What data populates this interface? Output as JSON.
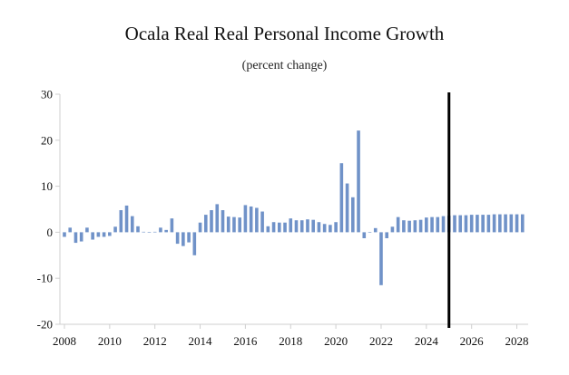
{
  "chart_data": {
    "type": "bar",
    "title": "Ocala Real Real Personal Income Growth",
    "subtitle": "(percent change)",
    "xlabel": "",
    "ylabel": "",
    "ylim": [
      -20,
      30
    ],
    "y_ticks": [
      30,
      20,
      10,
      0,
      -10,
      -20
    ],
    "y_tick_labels": [
      "30",
      "20",
      "10",
      "0",
      "-10",
      "-20"
    ],
    "x_ticks": [
      2008,
      2010,
      2012,
      2014,
      2016,
      2018,
      2020,
      2022,
      2024,
      2026,
      2028
    ],
    "x_tick_labels": [
      "2008",
      "2010",
      "2012",
      "2014",
      "2016",
      "2018",
      "2020",
      "2022",
      "2024",
      "2026",
      "2028"
    ],
    "xlim": [
      2007.8,
      2028.5
    ],
    "grid": false,
    "bar_color": "#7092c8",
    "forecast_marker": {
      "x": 2025.0,
      "color": "#000000"
    },
    "x": [
      2008.0,
      2008.25,
      2008.5,
      2008.75,
      2009.0,
      2009.25,
      2009.5,
      2009.75,
      2010.0,
      2010.25,
      2010.5,
      2010.75,
      2011.0,
      2011.25,
      2011.5,
      2011.75,
      2012.0,
      2012.25,
      2012.5,
      2012.75,
      2013.0,
      2013.25,
      2013.5,
      2013.75,
      2014.0,
      2014.25,
      2014.5,
      2014.75,
      2015.0,
      2015.25,
      2015.5,
      2015.75,
      2016.0,
      2016.25,
      2016.5,
      2016.75,
      2017.0,
      2017.25,
      2017.5,
      2017.75,
      2018.0,
      2018.25,
      2018.5,
      2018.75,
      2019.0,
      2019.25,
      2019.5,
      2019.75,
      2020.0,
      2020.25,
      2020.5,
      2020.75,
      2021.0,
      2021.25,
      2021.5,
      2021.75,
      2022.0,
      2022.25,
      2022.5,
      2022.75,
      2023.0,
      2023.25,
      2023.5,
      2023.75,
      2024.0,
      2024.25,
      2024.5,
      2024.75,
      2025.0,
      2025.25,
      2025.5,
      2025.75,
      2026.0,
      2026.25,
      2026.5,
      2026.75,
      2027.0,
      2027.25,
      2027.5,
      2027.75,
      2028.0,
      2028.25
    ],
    "values": [
      -1.0,
      1.0,
      -2.3,
      -2.0,
      1.0,
      -1.6,
      -1.0,
      -1.0,
      -0.8,
      1.2,
      4.8,
      5.8,
      3.5,
      1.3,
      0.1,
      -0.1,
      0.1,
      1.0,
      0.5,
      3.0,
      -2.5,
      -3.0,
      -2.2,
      -5.0,
      2.1,
      3.8,
      4.8,
      6.1,
      4.8,
      3.4,
      3.3,
      3.2,
      5.9,
      5.6,
      5.3,
      4.5,
      1.3,
      2.2,
      2.1,
      2.1,
      3.0,
      2.6,
      2.6,
      2.8,
      2.7,
      2.2,
      1.8,
      1.6,
      2.2,
      15.0,
      10.6,
      7.6,
      22.1,
      -1.3,
      0.0,
      0.9,
      -11.5,
      -1.3,
      1.2,
      3.3,
      2.6,
      2.5,
      2.6,
      2.7,
      3.2,
      3.3,
      3.3,
      3.5,
      3.6,
      3.7,
      3.7,
      3.7,
      3.8,
      3.8,
      3.8,
      3.8,
      3.9,
      3.9,
      3.9,
      3.9,
      3.9,
      3.9
    ]
  }
}
